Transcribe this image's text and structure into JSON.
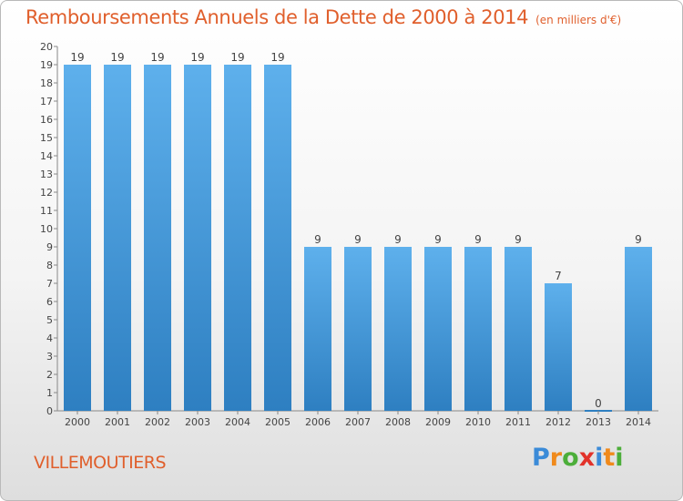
{
  "header": {
    "title": "Remboursements Annuels de la Dette de 2000 à 2014",
    "unit": "(en milliers d'€)"
  },
  "footer": {
    "commune": "VILLEMOUTIERS",
    "brand_letters": [
      "P",
      "r",
      "o",
      "x",
      "i",
      "t",
      "i"
    ],
    "brand_colors": [
      "#3b8bd8",
      "#f08a1c",
      "#4cae3a",
      "#e2322a",
      "#3b8bd8",
      "#f08a1c",
      "#4cae3a"
    ]
  },
  "chart_data": {
    "type": "bar",
    "categories": [
      "2000",
      "2001",
      "2002",
      "2003",
      "2004",
      "2005",
      "2006",
      "2007",
      "2008",
      "2009",
      "2010",
      "2011",
      "2012",
      "2013",
      "2014"
    ],
    "values": [
      19,
      19,
      19,
      19,
      19,
      19,
      9,
      9,
      9,
      9,
      9,
      9,
      7,
      0,
      9
    ],
    "data_labels": [
      "19",
      "19",
      "19",
      "19",
      "19",
      "19",
      "9",
      "9",
      "9",
      "9",
      "9",
      "9",
      "7",
      "0",
      "9"
    ],
    "ylim": [
      0,
      20
    ],
    "yticks": [
      "0",
      "1",
      "2",
      "3",
      "4",
      "5",
      "6",
      "7",
      "8",
      "9",
      "10",
      "11",
      "12",
      "13",
      "14",
      "15",
      "16",
      "17",
      "18",
      "19",
      "20"
    ],
    "xlabel": "",
    "ylabel": "",
    "grid": false,
    "colors": {
      "bar_light": "#5eb0ec",
      "bar_dark": "#2e7fc1",
      "text": "#444444",
      "axis": "#888888"
    }
  }
}
